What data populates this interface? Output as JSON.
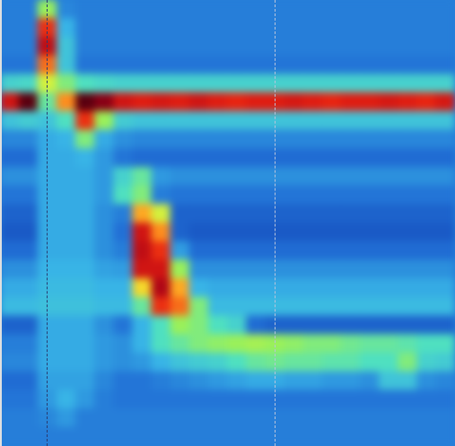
{
  "chart_data": {
    "type": "heatmap",
    "tick_labels": false,
    "zlim": [
      0,
      150
    ],
    "cells": [
      [
        18,
        18,
        60,
        20,
        18,
        18,
        18,
        18,
        18,
        18,
        18,
        18,
        18,
        18,
        18,
        18,
        18,
        18,
        18,
        18,
        18,
        18,
        18,
        18
      ],
      [
        18,
        18,
        110,
        30,
        18,
        18,
        18,
        18,
        18,
        18,
        18,
        18,
        18,
        18,
        18,
        18,
        18,
        18,
        18,
        18,
        18,
        18,
        18,
        18
      ],
      [
        18,
        18,
        125,
        35,
        18,
        18,
        18,
        18,
        18,
        18,
        18,
        18,
        18,
        18,
        18,
        18,
        18,
        18,
        18,
        18,
        18,
        18,
        18,
        18
      ],
      [
        16,
        16,
        100,
        35,
        16,
        16,
        16,
        16,
        16,
        16,
        16,
        16,
        16,
        16,
        16,
        16,
        16,
        16,
        16,
        16,
        16,
        16,
        16,
        16
      ],
      [
        40,
        42,
        70,
        55,
        45,
        42,
        40,
        40,
        40,
        40,
        40,
        40,
        40,
        40,
        40,
        40,
        40,
        40,
        40,
        40,
        40,
        40,
        40,
        40
      ],
      [
        120,
        150,
        50,
        95,
        150,
        140,
        120,
        115,
        118,
        115,
        120,
        115,
        112,
        115,
        115,
        118,
        115,
        112,
        115,
        115,
        118,
        115,
        112,
        118
      ],
      [
        35,
        38,
        35,
        45,
        110,
        60,
        38,
        35,
        35,
        35,
        35,
        35,
        35,
        35,
        35,
        35,
        35,
        35,
        35,
        35,
        35,
        35,
        35,
        35
      ],
      [
        20,
        20,
        28,
        30,
        55,
        28,
        22,
        20,
        20,
        20,
        20,
        20,
        20,
        20,
        20,
        20,
        20,
        20,
        20,
        20,
        20,
        20,
        20,
        20
      ],
      [
        14,
        14,
        28,
        28,
        30,
        24,
        16,
        14,
        14,
        14,
        14,
        14,
        14,
        14,
        14,
        14,
        14,
        14,
        14,
        14,
        14,
        14,
        14,
        14
      ],
      [
        22,
        22,
        28,
        28,
        28,
        24,
        40,
        50,
        24,
        22,
        22,
        22,
        22,
        22,
        22,
        22,
        22,
        22,
        22,
        22,
        22,
        22,
        22,
        22
      ],
      [
        16,
        16,
        28,
        28,
        28,
        24,
        45,
        55,
        18,
        16,
        16,
        16,
        16,
        16,
        16,
        16,
        16,
        16,
        16,
        16,
        16,
        16,
        16,
        16
      ],
      [
        12,
        12,
        28,
        28,
        28,
        22,
        18,
        90,
        70,
        12,
        12,
        12,
        12,
        12,
        12,
        12,
        12,
        12,
        12,
        12,
        12,
        12,
        12,
        12
      ],
      [
        10,
        10,
        28,
        28,
        28,
        22,
        15,
        120,
        95,
        12,
        10,
        10,
        10,
        10,
        10,
        10,
        10,
        10,
        10,
        10,
        10,
        10,
        10,
        10
      ],
      [
        14,
        14,
        28,
        28,
        28,
        22,
        18,
        125,
        110,
        25,
        14,
        14,
        14,
        14,
        14,
        14,
        14,
        14,
        14,
        14,
        14,
        14,
        14,
        14
      ],
      [
        22,
        22,
        30,
        30,
        30,
        26,
        25,
        120,
        120,
        60,
        22,
        22,
        22,
        22,
        22,
        22,
        22,
        22,
        22,
        22,
        22,
        22,
        22,
        22
      ],
      [
        28,
        28,
        32,
        32,
        32,
        30,
        30,
        80,
        130,
        90,
        30,
        28,
        28,
        28,
        28,
        28,
        28,
        28,
        28,
        28,
        28,
        28,
        28,
        28
      ],
      [
        32,
        32,
        34,
        34,
        34,
        32,
        32,
        50,
        110,
        100,
        55,
        32,
        32,
        32,
        32,
        32,
        32,
        32,
        32,
        32,
        32,
        32,
        32,
        32
      ],
      [
        12,
        12,
        28,
        28,
        28,
        22,
        16,
        30,
        45,
        60,
        55,
        45,
        40,
        14,
        12,
        12,
        12,
        12,
        12,
        12,
        12,
        12,
        12,
        12
      ],
      [
        18,
        18,
        28,
        28,
        28,
        24,
        22,
        30,
        45,
        50,
        55,
        58,
        60,
        62,
        60,
        58,
        55,
        55,
        52,
        50,
        50,
        48,
        45,
        45
      ],
      [
        20,
        20,
        28,
        28,
        28,
        24,
        22,
        24,
        30,
        35,
        38,
        40,
        45,
        50,
        52,
        50,
        50,
        48,
        48,
        45,
        45,
        55,
        40,
        38
      ],
      [
        14,
        14,
        26,
        26,
        26,
        20,
        16,
        16,
        18,
        20,
        22,
        24,
        26,
        28,
        28,
        26,
        26,
        24,
        24,
        22,
        35,
        35,
        22,
        20
      ],
      [
        16,
        16,
        24,
        30,
        24,
        18,
        16,
        16,
        16,
        16,
        16,
        16,
        16,
        16,
        16,
        16,
        16,
        16,
        16,
        16,
        16,
        16,
        16,
        16
      ],
      [
        18,
        18,
        20,
        24,
        18,
        18,
        18,
        18,
        18,
        18,
        18,
        18,
        18,
        18,
        18,
        18,
        18,
        18,
        18,
        18,
        18,
        18,
        18,
        18
      ],
      [
        18,
        18,
        18,
        18,
        18,
        18,
        18,
        18,
        18,
        18,
        18,
        18,
        18,
        18,
        18,
        18,
        18,
        18,
        18,
        18,
        18,
        18,
        18,
        18
      ]
    ]
  }
}
